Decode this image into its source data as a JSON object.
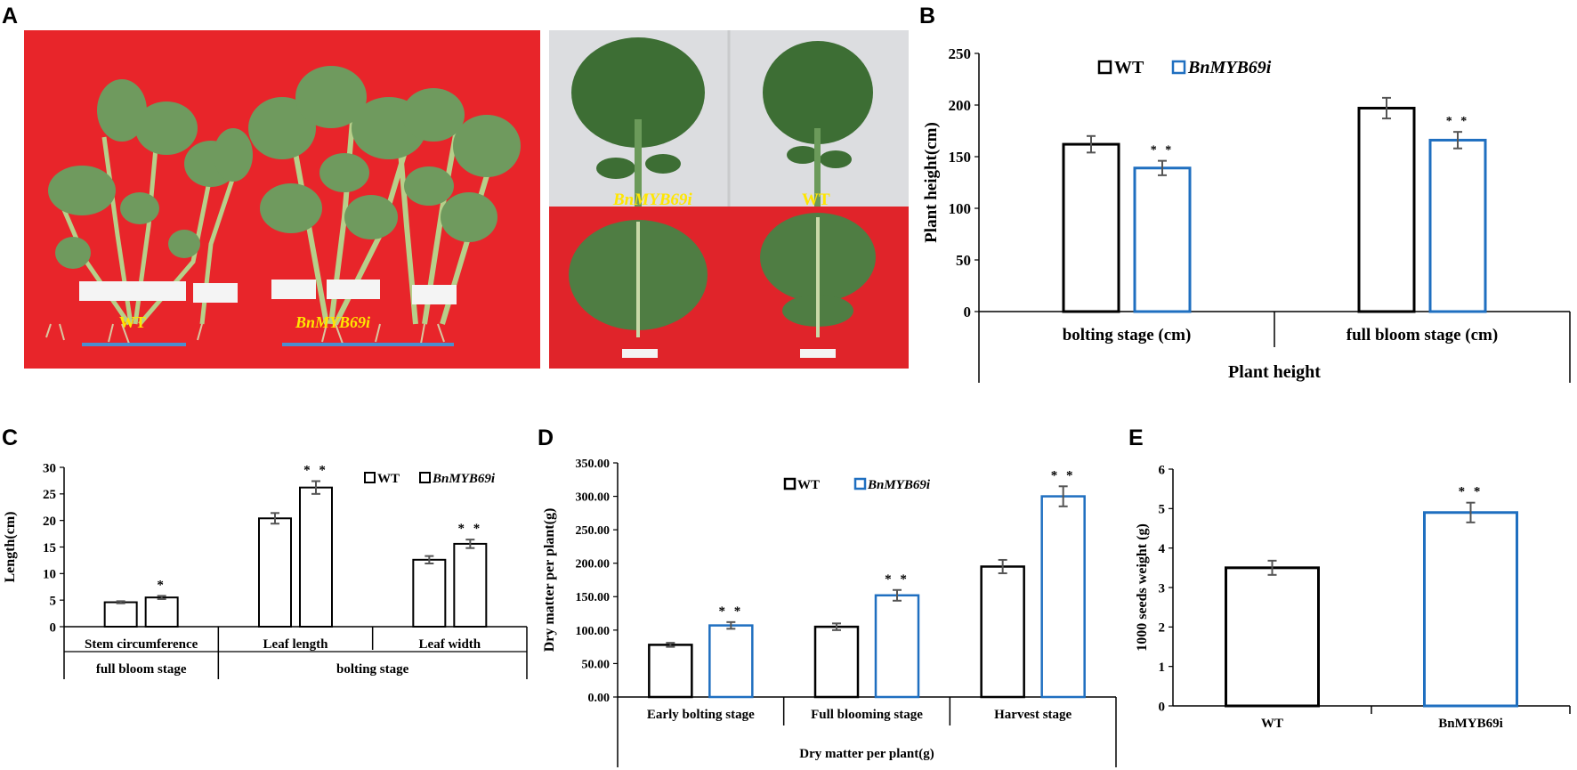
{
  "panels": {
    "A": "A",
    "B": "B",
    "C": "C",
    "D": "D",
    "E": "E"
  },
  "photo_left": {
    "label_wt": "WT",
    "label_mut": "BnMYB69i",
    "colors": {
      "background": "#e8252a",
      "leaf": "#6f9a5e",
      "stem": "#b7cf8a",
      "tag": "#f4f4f4",
      "bar": "#4a8fd0",
      "label": "#ffe600"
    }
  },
  "photo_right": {
    "label_mut": "BnMYB69i",
    "label_wt": "WT",
    "colors": {
      "top_bg": "#dcdde0",
      "bottom_bg": "#e0242a",
      "leaf": "#3d6e34",
      "leaf_light": "#6b9a5a",
      "label": "#ffe600"
    }
  },
  "chart_data": [
    {
      "id": "B",
      "type": "bar",
      "ylabel": "Plant height(cm)",
      "xlabel": "Plant height",
      "ylim": [
        0,
        250
      ],
      "yticks": [
        0,
        50,
        100,
        150,
        200,
        250
      ],
      "categories": [
        "bolting stage (cm)",
        "full bloom stage (cm)"
      ],
      "series": [
        {
          "name": "WT",
          "values": [
            162,
            197
          ],
          "errors": [
            8,
            10
          ],
          "color": "#000000",
          "sig": [
            "",
            ""
          ]
        },
        {
          "name": "BnMYB69i",
          "values": [
            139,
            166
          ],
          "errors": [
            7,
            8
          ],
          "color": "#1f6fc0",
          "sig": [
            "**",
            "**"
          ]
        }
      ],
      "grid": false,
      "legend": "top-center"
    },
    {
      "id": "C",
      "type": "bar",
      "ylabel": "Length(cm)",
      "ylim": [
        0,
        30
      ],
      "yticks": [
        0,
        5,
        10,
        15,
        20,
        25,
        30
      ],
      "categories": [
        "Stem circumference",
        "Leaf length",
        "Leaf width"
      ],
      "groups": [
        {
          "label": "full bloom stage",
          "span": [
            0,
            0
          ]
        },
        {
          "label": "bolting stage",
          "span": [
            1,
            2
          ]
        }
      ],
      "series": [
        {
          "name": "WT",
          "values": [
            4.6,
            20.4,
            12.6
          ],
          "errors": [
            0.2,
            1.0,
            0.7
          ],
          "color": "#000000",
          "sig": [
            "",
            "",
            ""
          ]
        },
        {
          "name": "BnMYB69i",
          "values": [
            5.5,
            26.2,
            15.6
          ],
          "errors": [
            0.3,
            1.2,
            0.8
          ],
          "color": "#000000",
          "sig": [
            "*",
            "**",
            "**"
          ]
        }
      ],
      "grid": false,
      "legend": "top-right"
    },
    {
      "id": "D",
      "type": "bar",
      "ylabel": "Dry matter per plant(g)",
      "xlabel": "Dry matter per plant(g)",
      "ylim": [
        0,
        350
      ],
      "yticks": [
        "0.00",
        "50.00",
        "100.00",
        "150.00",
        "200.00",
        "250.00",
        "300.00",
        "350.00"
      ],
      "categories": [
        "Early bolting stage",
        "Full blooming stage",
        "Harvest stage"
      ],
      "series": [
        {
          "name": "WT",
          "values": [
            78,
            105,
            195
          ],
          "errors": [
            3,
            5,
            10
          ],
          "color": "#000000",
          "sig": [
            "",
            "",
            ""
          ]
        },
        {
          "name": "BnMYB69i",
          "values": [
            107,
            152,
            300
          ],
          "errors": [
            5,
            8,
            15
          ],
          "color": "#1f6fc0",
          "sig": [
            "**",
            "**",
            "**"
          ]
        }
      ],
      "grid": false,
      "legend": "top-center"
    },
    {
      "id": "E",
      "type": "bar",
      "ylabel": "1000 seeds weight (g)",
      "ylim": [
        0,
        6
      ],
      "yticks": [
        0,
        1,
        2,
        3,
        4,
        5,
        6
      ],
      "categories": [
        "WT",
        "BnMYB69i"
      ],
      "values": [
        3.5,
        4.9
      ],
      "errors": [
        0.18,
        0.25
      ],
      "colors": [
        "#000000",
        "#1f6fc0"
      ],
      "sig": [
        "",
        "**"
      ],
      "grid": false
    }
  ]
}
